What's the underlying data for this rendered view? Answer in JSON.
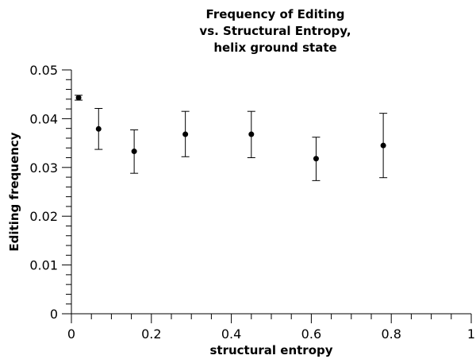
{
  "chart_data": {
    "type": "scatter",
    "title_lines": [
      "Frequency of Editing",
      "vs. Structural Entropy,",
      "helix ground state"
    ],
    "xlabel": "structural entropy",
    "ylabel": "Editing frequency",
    "xlim": [
      0,
      1
    ],
    "ylim": [
      0,
      0.05
    ],
    "x_ticks": [
      "0",
      "0.2",
      "0.4",
      "0.6",
      "0.8",
      "1"
    ],
    "y_ticks": [
      "0",
      "0.01",
      "0.02",
      "0.03",
      "0.04",
      "0.05"
    ],
    "grid": false,
    "points": [
      {
        "x": 0.018,
        "y": 0.0443,
        "err_low": 0.0438,
        "err_high": 0.0448
      },
      {
        "x": 0.068,
        "y": 0.0379,
        "err_low": 0.0337,
        "err_high": 0.0421
      },
      {
        "x": 0.157,
        "y": 0.0333,
        "err_low": 0.0288,
        "err_high": 0.0377
      },
      {
        "x": 0.285,
        "y": 0.0368,
        "err_low": 0.0322,
        "err_high": 0.0415
      },
      {
        "x": 0.45,
        "y": 0.0368,
        "err_low": 0.032,
        "err_high": 0.0415
      },
      {
        "x": 0.612,
        "y": 0.0318,
        "err_low": 0.0273,
        "err_high": 0.0362
      },
      {
        "x": 0.78,
        "y": 0.0345,
        "err_low": 0.0279,
        "err_high": 0.0411
      }
    ],
    "marker_color": "#000000"
  }
}
